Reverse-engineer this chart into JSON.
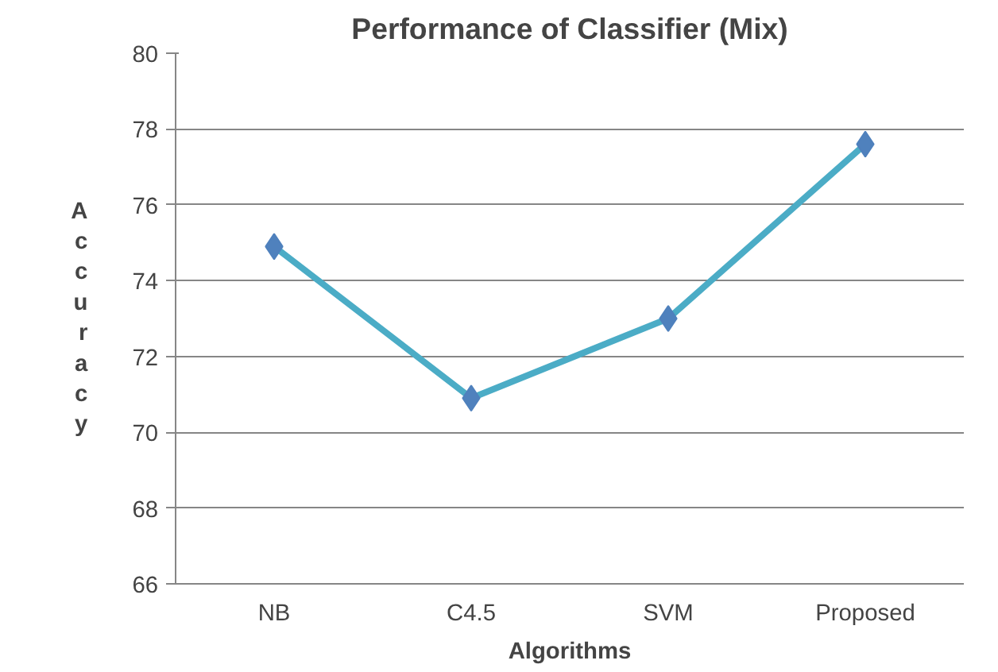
{
  "chart_data": {
    "type": "line",
    "title": "Performance of Classifier (Mix)",
    "xlabel": "Algorithms",
    "ylabel": "Accuracy",
    "categories": [
      "NB",
      "C4.5",
      "SVM",
      "Proposed"
    ],
    "series": [
      {
        "color": "#4bacc6",
        "values": [
          74.9,
          70.9,
          73.0,
          77.6
        ]
      }
    ],
    "ylim": [
      66,
      80
    ],
    "yticks": [
      66,
      68,
      70,
      72,
      74,
      76,
      78,
      80
    ],
    "grid": "y",
    "marker": "diamond",
    "line_style": "solid"
  }
}
